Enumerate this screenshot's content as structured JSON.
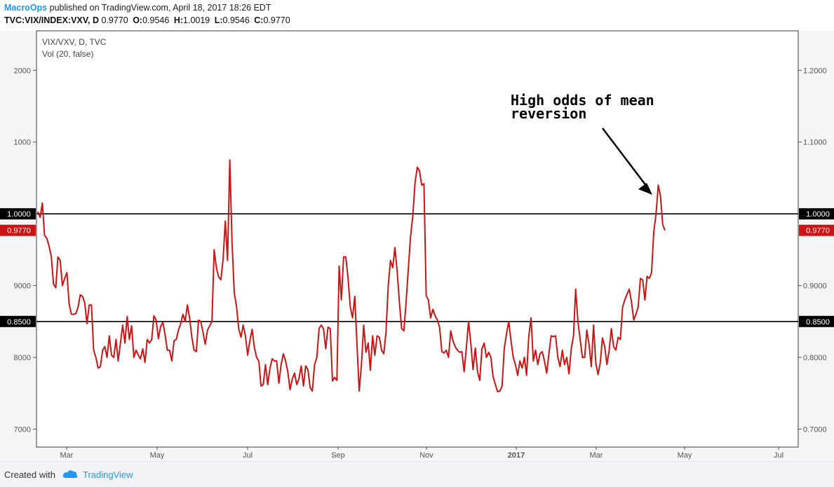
{
  "header": {
    "author": "MacroOps",
    "published_text": "published on TradingView.com, April 18, 2017 18:26 EDT",
    "symbol": "TVC:VIX/INDEX:VXV, D",
    "last": "0.9770",
    "open_label": "O:",
    "open": "0.9546",
    "high_label": "H:",
    "high": "1.0019",
    "low_label": "L:",
    "low": "0.9546",
    "close_label": "C:",
    "close": "0.9770"
  },
  "legend": {
    "line1": "VIX/VXV, D, TVC",
    "line2": "Vol (20, false)"
  },
  "annotation": {
    "line1": "High odds of mean",
    "line2": "reversion"
  },
  "footer": {
    "created_with": "Created with",
    "brand": "TradingView"
  },
  "colors": {
    "series": "#cc1414",
    "line_marker": "#000000",
    "current_marker": "#cc1414",
    "brand": "#2196f3"
  },
  "chart_data": {
    "type": "line",
    "x_ticks": [
      "Mar",
      "May",
      "Jul",
      "Sep",
      "Nov",
      "2017",
      "Mar",
      "May",
      "Jul"
    ],
    "y_right_ticks": [
      "1.2000",
      "1.1000",
      "1.0000",
      "0.9770",
      "0.9000",
      "0.8500",
      "0.8000",
      "0.7000"
    ],
    "y_left_ticks": [
      "2000",
      "1000",
      "9000",
      "8000",
      "7000"
    ],
    "ylim": [
      0.675,
      1.255
    ],
    "horizontal_lines": [
      1.0,
      0.85
    ],
    "current_value": 0.977,
    "grid": false,
    "series": [
      {
        "values": [
          1.003,
          0.995,
          1.015,
          0.97,
          0.966,
          0.955,
          0.941,
          0.902,
          0.897,
          0.94,
          0.935,
          0.9,
          0.91,
          0.918,
          0.875,
          0.86,
          0.86,
          0.861,
          0.87,
          0.887,
          0.885,
          0.876,
          0.847,
          0.873,
          0.873,
          0.81,
          0.8,
          0.785,
          0.787,
          0.81,
          0.815,
          0.8,
          0.83,
          0.803,
          0.8,
          0.825,
          0.795,
          0.82,
          0.845,
          0.82,
          0.857,
          0.825,
          0.844,
          0.8,
          0.81,
          0.803,
          0.798,
          0.812,
          0.793,
          0.825,
          0.82,
          0.825,
          0.858,
          0.852,
          0.826,
          0.843,
          0.849,
          0.832,
          0.81,
          0.81,
          0.795,
          0.823,
          0.825,
          0.838,
          0.847,
          0.86,
          0.85,
          0.873,
          0.855,
          0.828,
          0.81,
          0.808,
          0.852,
          0.85,
          0.835,
          0.818,
          0.838,
          0.844,
          0.85,
          0.95,
          0.925,
          0.912,
          0.908,
          0.937,
          0.99,
          0.935,
          1.075,
          0.96,
          0.89,
          0.871,
          0.84,
          0.828,
          0.845,
          0.83,
          0.803,
          0.823,
          0.839,
          0.814,
          0.8,
          0.795,
          0.76,
          0.762,
          0.79,
          0.762,
          0.785,
          0.798,
          0.795,
          0.795,
          0.764,
          0.79,
          0.805,
          0.795,
          0.78,
          0.755,
          0.77,
          0.778,
          0.762,
          0.77,
          0.788,
          0.76,
          0.788,
          0.783,
          0.758,
          0.753,
          0.79,
          0.8,
          0.84,
          0.845,
          0.84,
          0.812,
          0.842,
          0.84,
          0.767,
          0.772,
          0.768,
          0.927,
          0.88,
          0.94,
          0.94,
          0.91,
          0.87,
          0.855,
          0.885,
          0.817,
          0.753,
          0.79,
          0.845,
          0.807,
          0.82,
          0.782,
          0.83,
          0.803,
          0.83,
          0.828,
          0.81,
          0.805,
          0.835,
          0.9,
          0.935,
          0.925,
          0.953,
          0.92,
          0.877,
          0.84,
          0.837,
          0.876,
          0.923,
          0.968,
          0.997,
          1.043,
          1.065,
          1.06,
          1.04,
          1.042,
          0.886,
          0.88,
          0.855,
          0.867,
          0.858,
          0.852,
          0.842,
          0.808,
          0.806,
          0.81,
          0.8,
          0.837,
          0.823,
          0.815,
          0.81,
          0.807,
          0.808,
          0.78,
          0.813,
          0.85,
          0.82,
          0.783,
          0.813,
          0.78,
          0.768,
          0.812,
          0.82,
          0.8,
          0.807,
          0.8,
          0.773,
          0.762,
          0.752,
          0.753,
          0.76,
          0.812,
          0.833,
          0.85,
          0.823,
          0.8,
          0.79,
          0.775,
          0.795,
          0.785,
          0.8,
          0.775,
          0.83,
          0.855,
          0.795,
          0.81,
          0.79,
          0.805,
          0.808,
          0.795,
          0.778,
          0.805,
          0.83,
          0.829,
          0.83,
          0.8,
          0.787,
          0.81,
          0.79,
          0.8,
          0.777,
          0.812,
          0.83,
          0.895,
          0.85,
          0.825,
          0.8,
          0.8,
          0.838,
          0.818,
          0.787,
          0.845,
          0.792,
          0.776,
          0.792,
          0.827,
          0.815,
          0.79,
          0.81,
          0.84,
          0.815,
          0.81,
          0.828,
          0.825,
          0.87,
          0.88,
          0.888,
          0.895,
          0.877,
          0.852,
          0.86,
          0.87,
          0.91,
          0.908,
          0.88,
          0.913,
          0.91,
          0.918,
          0.975,
          1.0,
          1.04,
          1.025,
          0.985,
          0.977
        ]
      }
    ]
  }
}
